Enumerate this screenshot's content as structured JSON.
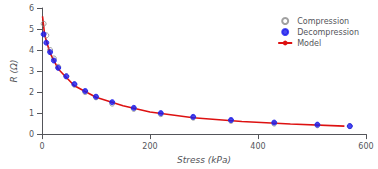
{
  "chart_data": {
    "type": "scatter",
    "xlabel": "Stress (kPa)",
    "ylabel": "R (Ω)",
    "xlim": [
      0,
      600
    ],
    "ylim": [
      0,
      6
    ],
    "xticks": [
      0,
      200,
      400,
      600
    ],
    "yticks": [
      0,
      1,
      2,
      3,
      4,
      5,
      6
    ],
    "grid": false,
    "legend": "upper right",
    "series": [
      {
        "name": "Model",
        "type": "line",
        "line_style": "solid",
        "color": "#dd1111",
        "x": [
          1,
          5,
          15,
          30,
          60,
          100,
          150,
          200,
          280,
          370,
          460,
          560
        ],
        "values": [
          5.6,
          4.7,
          3.85,
          3.1,
          2.3,
          1.75,
          1.35,
          1.05,
          0.78,
          0.6,
          0.48,
          0.38
        ]
      },
      {
        "name": "Compression",
        "type": "scatter",
        "marker": "circle_open",
        "color": "#888888",
        "x": [
          3,
          8,
          15,
          22,
          30,
          45,
          60,
          80,
          100,
          130,
          170,
          220,
          280,
          350,
          430,
          510,
          570
        ],
        "values": [
          5.25,
          4.7,
          4.0,
          3.6,
          3.2,
          2.75,
          2.35,
          2.0,
          1.75,
          1.45,
          1.2,
          0.95,
          0.78,
          0.63,
          0.5,
          0.42,
          0.38
        ]
      },
      {
        "name": "Decompression",
        "type": "scatter",
        "marker": "circle",
        "color": "#1a1aee",
        "x": [
          570,
          510,
          430,
          350,
          280,
          220,
          170,
          130,
          100,
          80,
          60,
          45,
          30,
          22,
          15,
          8,
          3
        ],
        "values": [
          0.38,
          0.45,
          0.55,
          0.67,
          0.82,
          1.0,
          1.25,
          1.52,
          1.78,
          2.05,
          2.38,
          2.75,
          3.15,
          3.5,
          3.9,
          4.35,
          4.75
        ]
      }
    ]
  }
}
